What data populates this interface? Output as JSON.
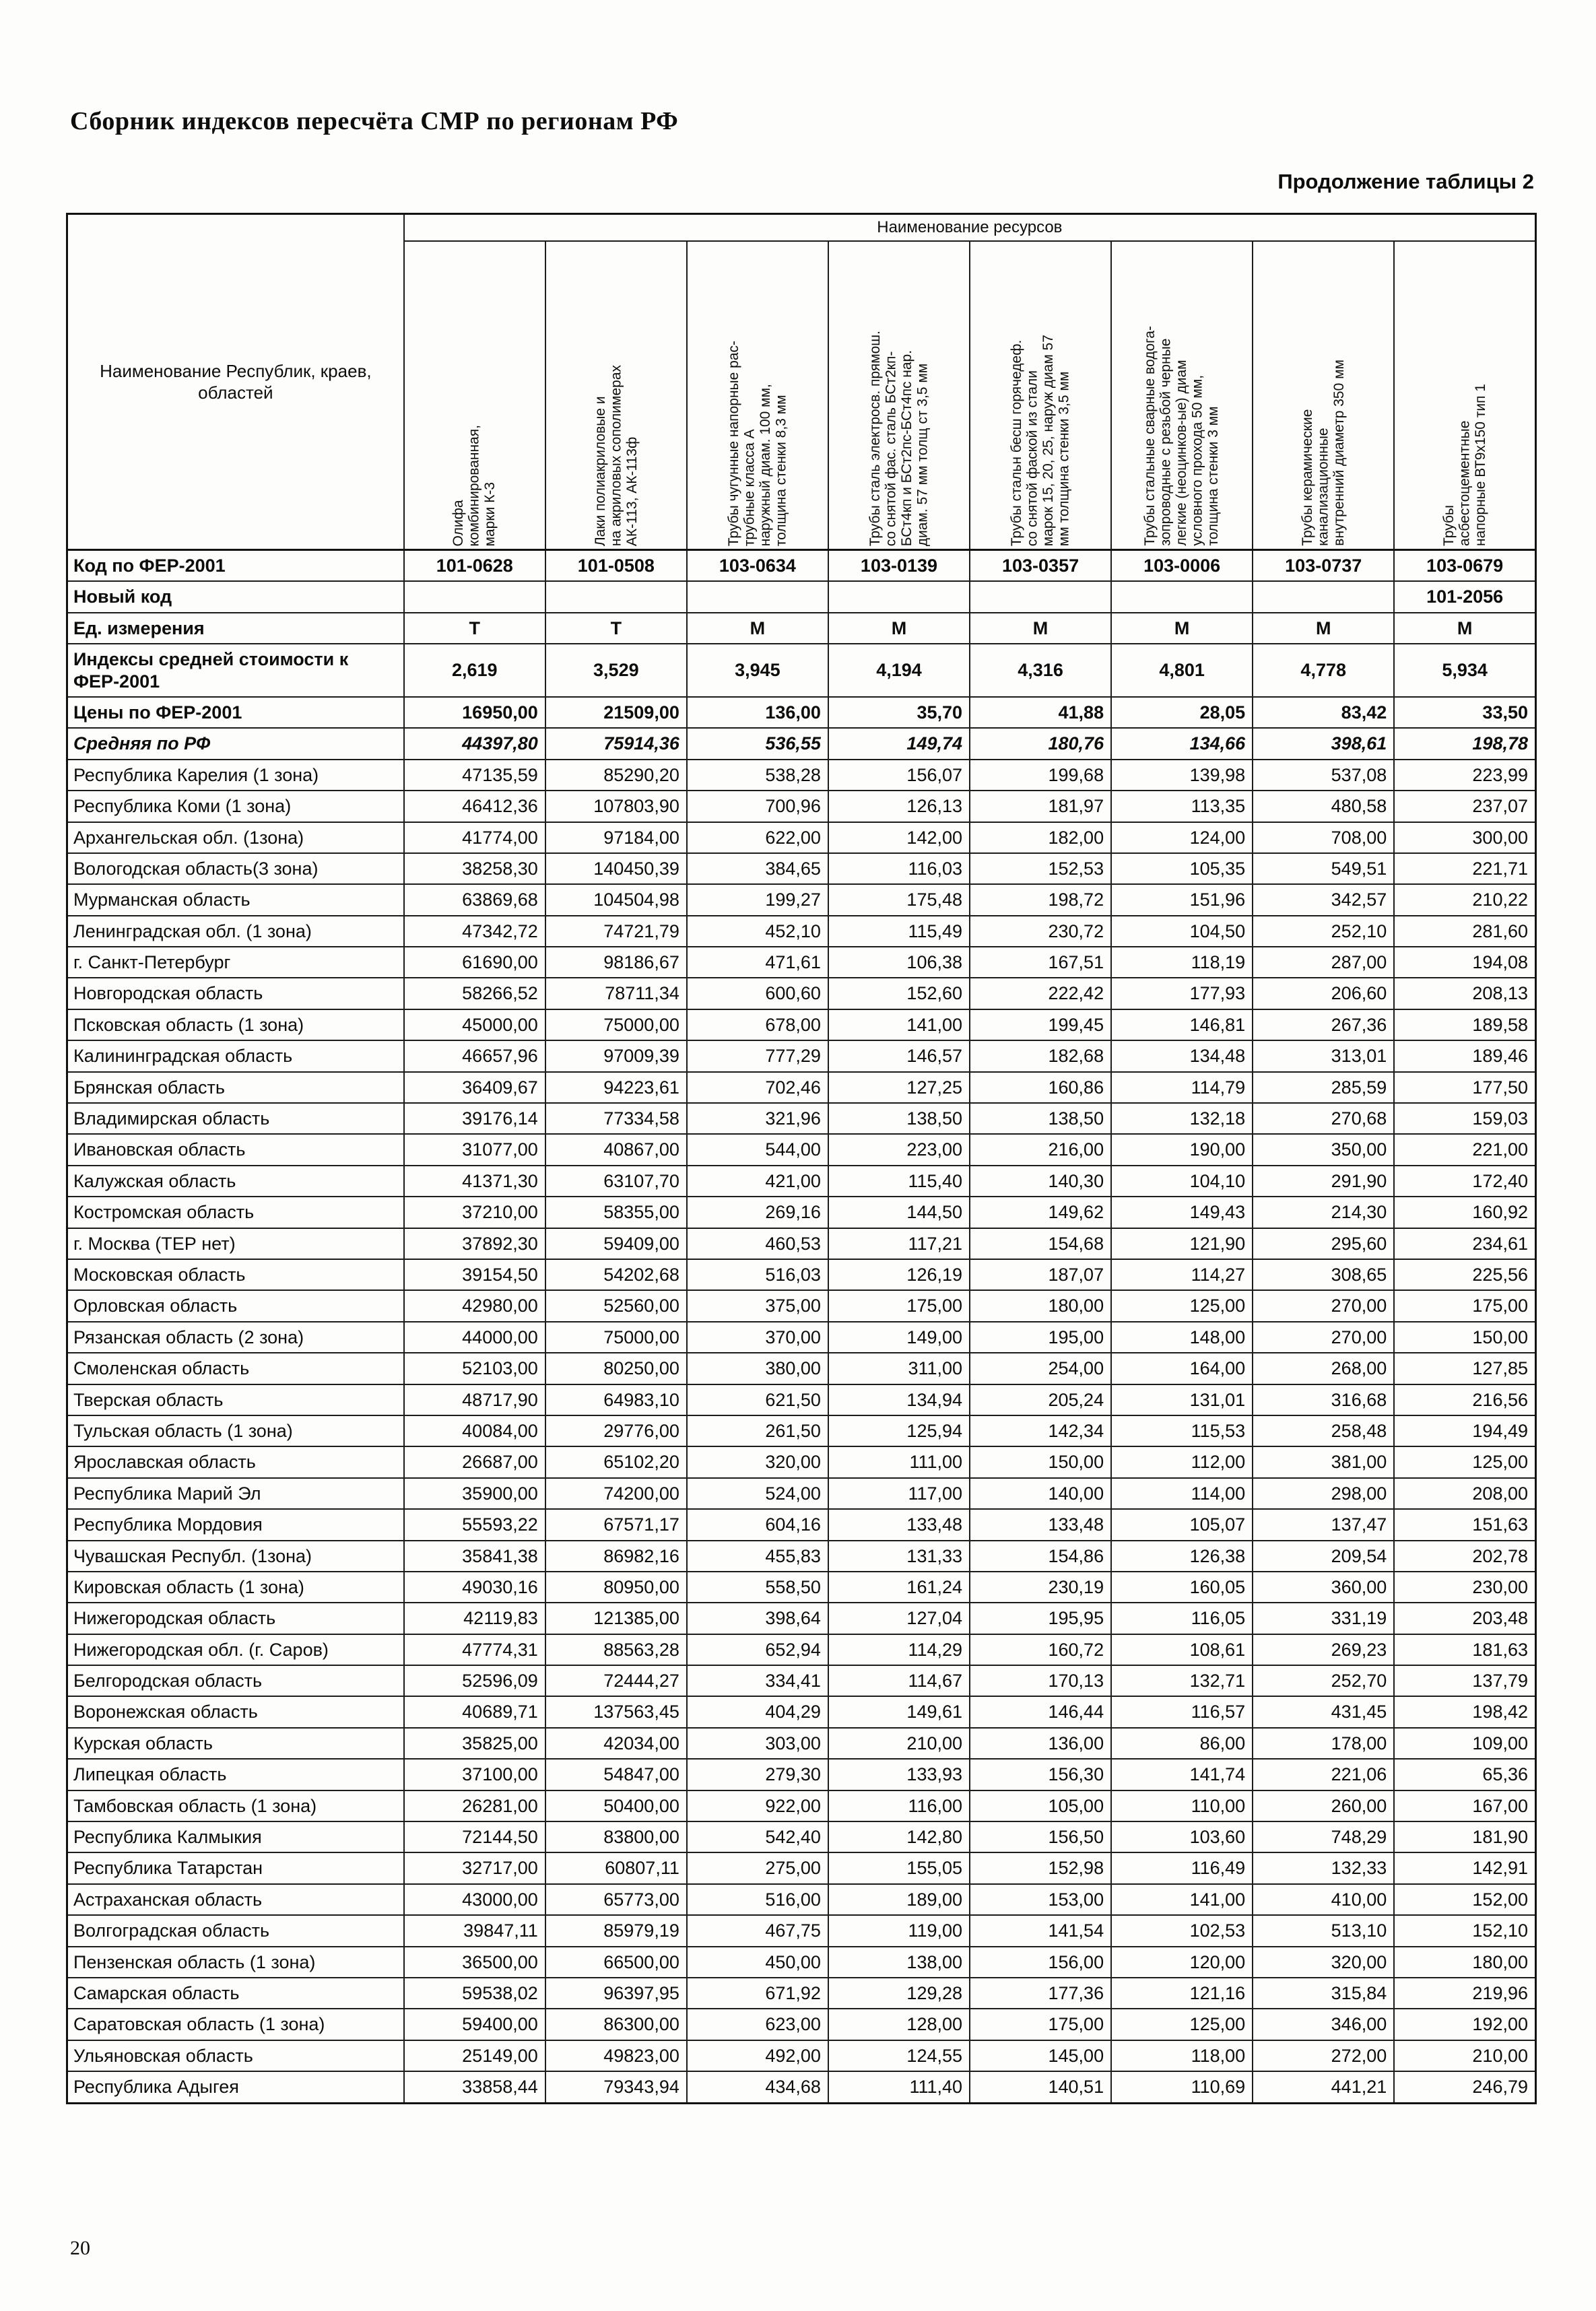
{
  "page": {
    "header_title": "Сборник индексов пересчёта СМР  по регионам РФ",
    "table_caption": "Продолжение таблицы 2",
    "page_number": "20"
  },
  "table": {
    "resources_header": "Наименование ресурсов",
    "region_col_header": "Наименование Республик, краев,\nобластей",
    "columns": [
      "Олифа\nкомбинированная,\nмарки К-3",
      "Лаки полиакриловые и\nна акриловых сополимерах\nАК-113, АК-113ф",
      "Трубы чугунные напорные рас-\nтрубные класса А\nнаружный диам. 100 мм,\nтолщина стенки 8,3 мм",
      "Трубы сталь электросв. прямош.\nсо снятой фас. сталь БСт2кп-\nБСт4кп и БСт2пс-БСт4пс нар.\nдиам. 57 мм толщ ст 3,5 мм",
      "Трубы стальн бесш горячедеф.\nсо снятой фаской  из стали\nмарок 15, 20, 25, наруж диам 57\nмм толщина стенки 3,5 мм",
      "Трубы стальные сварные водога-\nзопроводные с резьбой черные\nлегкие (неоцинков-ые) диам\nусловного прохода 50 мм,\nтолщина стенки 3 мм",
      "Трубы керамические\nканализационные\nвнутренний диаметр  350 мм",
      "Трубы\nасбестоцементные\nнапорные ВТ9х150 тип 1"
    ],
    "meta_rows": [
      {
        "label": "Код по ФЕР-2001",
        "align": "center",
        "cls": "b",
        "values": [
          "101-0628",
          "101-0508",
          "103-0634",
          "103-0139",
          "103-0357",
          "103-0006",
          "103-0737",
          "103-0679"
        ]
      },
      {
        "label": "Новый код",
        "align": "center",
        "cls": "b",
        "values": [
          "",
          "",
          "",
          "",
          "",
          "",
          "",
          "101-2056"
        ]
      },
      {
        "label": "Ед. измерения",
        "align": "center",
        "cls": "b",
        "values": [
          "Т",
          "Т",
          "М",
          "М",
          "М",
          "М",
          "М",
          "М"
        ]
      },
      {
        "label": "Индексы средней стоимости к ФЕР-2001",
        "align": "center",
        "cls": "b",
        "values": [
          "2,619",
          "3,529",
          "3,945",
          "4,194",
          "4,316",
          "4,801",
          "4,778",
          "5,934"
        ]
      },
      {
        "label": "Цены по ФЕР-2001",
        "align": "right",
        "cls": "b",
        "values": [
          "16950,00",
          "21509,00",
          "136,00",
          "35,70",
          "41,88",
          "28,05",
          "83,42",
          "33,50"
        ]
      },
      {
        "label": "Средняя по РФ",
        "align": "right",
        "cls": "bi",
        "values": [
          "44397,80",
          "75914,36",
          "536,55",
          "149,74",
          "180,76",
          "134,66",
          "398,61",
          "198,78"
        ]
      }
    ],
    "rows": [
      {
        "region": "Республика Карелия (1 зона)",
        "values": [
          "47135,59",
          "85290,20",
          "538,28",
          "156,07",
          "199,68",
          "139,98",
          "537,08",
          "223,99"
        ]
      },
      {
        "region": "Республика Коми (1 зона)",
        "values": [
          "46412,36",
          "107803,90",
          "700,96",
          "126,13",
          "181,97",
          "113,35",
          "480,58",
          "237,07"
        ]
      },
      {
        "region": "Архангельская обл. (1зона)",
        "values": [
          "41774,00",
          "97184,00",
          "622,00",
          "142,00",
          "182,00",
          "124,00",
          "708,00",
          "300,00"
        ]
      },
      {
        "region": "Вологодская область(3 зона)",
        "values": [
          "38258,30",
          "140450,39",
          "384,65",
          "116,03",
          "152,53",
          "105,35",
          "549,51",
          "221,71"
        ]
      },
      {
        "region": "Мурманская область",
        "values": [
          "63869,68",
          "104504,98",
          "199,27",
          "175,48",
          "198,72",
          "151,96",
          "342,57",
          "210,22"
        ]
      },
      {
        "region": "Ленинградская обл. (1 зона)",
        "values": [
          "47342,72",
          "74721,79",
          "452,10",
          "115,49",
          "230,72",
          "104,50",
          "252,10",
          "281,60"
        ]
      },
      {
        "region": "г. Санкт-Петербург",
        "values": [
          "61690,00",
          "98186,67",
          "471,61",
          "106,38",
          "167,51",
          "118,19",
          "287,00",
          "194,08"
        ]
      },
      {
        "region": "Новгородская область",
        "values": [
          "58266,52",
          "78711,34",
          "600,60",
          "152,60",
          "222,42",
          "177,93",
          "206,60",
          "208,13"
        ]
      },
      {
        "region": "Псковская область (1 зона)",
        "values": [
          "45000,00",
          "75000,00",
          "678,00",
          "141,00",
          "199,45",
          "146,81",
          "267,36",
          "189,58"
        ]
      },
      {
        "region": "Калининградская область",
        "values": [
          "46657,96",
          "97009,39",
          "777,29",
          "146,57",
          "182,68",
          "134,48",
          "313,01",
          "189,46"
        ]
      },
      {
        "region": "Брянская область",
        "values": [
          "36409,67",
          "94223,61",
          "702,46",
          "127,25",
          "160,86",
          "114,79",
          "285,59",
          "177,50"
        ]
      },
      {
        "region": "Владимирская область",
        "values": [
          "39176,14",
          "77334,58",
          "321,96",
          "138,50",
          "138,50",
          "132,18",
          "270,68",
          "159,03"
        ]
      },
      {
        "region": "Ивановская область",
        "values": [
          "31077,00",
          "40867,00",
          "544,00",
          "223,00",
          "216,00",
          "190,00",
          "350,00",
          "221,00"
        ]
      },
      {
        "region": "Калужская область",
        "values": [
          "41371,30",
          "63107,70",
          "421,00",
          "115,40",
          "140,30",
          "104,10",
          "291,90",
          "172,40"
        ]
      },
      {
        "region": "Костромская область",
        "values": [
          "37210,00",
          "58355,00",
          "269,16",
          "144,50",
          "149,62",
          "149,43",
          "214,30",
          "160,92"
        ]
      },
      {
        "region": "г. Москва (ТЕР нет)",
        "values": [
          "37892,30",
          "59409,00",
          "460,53",
          "117,21",
          "154,68",
          "121,90",
          "295,60",
          "234,61"
        ]
      },
      {
        "region": "Московская  область",
        "values": [
          "39154,50",
          "54202,68",
          "516,03",
          "126,19",
          "187,07",
          "114,27",
          "308,65",
          "225,56"
        ]
      },
      {
        "region": "Орловская область",
        "values": [
          "42980,00",
          "52560,00",
          "375,00",
          "175,00",
          "180,00",
          "125,00",
          "270,00",
          "175,00"
        ]
      },
      {
        "region": "Рязанская область (2 зона)",
        "values": [
          "44000,00",
          "75000,00",
          "370,00",
          "149,00",
          "195,00",
          "148,00",
          "270,00",
          "150,00"
        ]
      },
      {
        "region": "Смоленская область",
        "values": [
          "52103,00",
          "80250,00",
          "380,00",
          "311,00",
          "254,00",
          "164,00",
          "268,00",
          "127,85"
        ]
      },
      {
        "region": "Тверская область",
        "values": [
          "48717,90",
          "64983,10",
          "621,50",
          "134,94",
          "205,24",
          "131,01",
          "316,68",
          "216,56"
        ]
      },
      {
        "region": "Тульская область (1 зона)",
        "values": [
          "40084,00",
          "29776,00",
          "261,50",
          "125,94",
          "142,34",
          "115,53",
          "258,48",
          "194,49"
        ]
      },
      {
        "region": "Ярославская область",
        "values": [
          "26687,00",
          "65102,20",
          "320,00",
          "111,00",
          "150,00",
          "112,00",
          "381,00",
          "125,00"
        ]
      },
      {
        "region": "Республика Марий Эл",
        "values": [
          "35900,00",
          "74200,00",
          "524,00",
          "117,00",
          "140,00",
          "114,00",
          "298,00",
          "208,00"
        ]
      },
      {
        "region": "Республика Мордовия",
        "values": [
          "55593,22",
          "67571,17",
          "604,16",
          "133,48",
          "133,48",
          "105,07",
          "137,47",
          "151,63"
        ]
      },
      {
        "region": "Чувашская Республ. (1зона)",
        "values": [
          "35841,38",
          "86982,16",
          "455,83",
          "131,33",
          "154,86",
          "126,38",
          "209,54",
          "202,78"
        ]
      },
      {
        "region": "Кировская область (1 зона)",
        "values": [
          "49030,16",
          "80950,00",
          "558,50",
          "161,24",
          "230,19",
          "160,05",
          "360,00",
          "230,00"
        ]
      },
      {
        "region": "Нижегородская область",
        "values": [
          "42119,83",
          "121385,00",
          "398,64",
          "127,04",
          "195,95",
          "116,05",
          "331,19",
          "203,48"
        ]
      },
      {
        "region": "Нижегородская обл. (г. Саров)",
        "values": [
          "47774,31",
          "88563,28",
          "652,94",
          "114,29",
          "160,72",
          "108,61",
          "269,23",
          "181,63"
        ]
      },
      {
        "region": "Белгородская область",
        "values": [
          "52596,09",
          "72444,27",
          "334,41",
          "114,67",
          "170,13",
          "132,71",
          "252,70",
          "137,79"
        ]
      },
      {
        "region": "Воронежская область",
        "values": [
          "40689,71",
          "137563,45",
          "404,29",
          "149,61",
          "146,44",
          "116,57",
          "431,45",
          "198,42"
        ]
      },
      {
        "region": "Курская область",
        "values": [
          "35825,00",
          "42034,00",
          "303,00",
          "210,00",
          "136,00",
          "86,00",
          "178,00",
          "109,00"
        ]
      },
      {
        "region": "Липецкая область",
        "values": [
          "37100,00",
          "54847,00",
          "279,30",
          "133,93",
          "156,30",
          "141,74",
          "221,06",
          "65,36"
        ]
      },
      {
        "region": "Тамбовская область (1 зона)",
        "values": [
          "26281,00",
          "50400,00",
          "922,00",
          "116,00",
          "105,00",
          "110,00",
          "260,00",
          "167,00"
        ]
      },
      {
        "region": "Республика Калмыкия",
        "values": [
          "72144,50",
          "83800,00",
          "542,40",
          "142,80",
          "156,50",
          "103,60",
          "748,29",
          "181,90"
        ]
      },
      {
        "region": "Республика Татарстан",
        "values": [
          "32717,00",
          "60807,11",
          "275,00",
          "155,05",
          "152,98",
          "116,49",
          "132,33",
          "142,91"
        ]
      },
      {
        "region": "Астраханская область",
        "values": [
          "43000,00",
          "65773,00",
          "516,00",
          "189,00",
          "153,00",
          "141,00",
          "410,00",
          "152,00"
        ]
      },
      {
        "region": "Волгоградская область",
        "values": [
          "39847,11",
          "85979,19",
          "467,75",
          "119,00",
          "141,54",
          "102,53",
          "513,10",
          "152,10"
        ]
      },
      {
        "region": "Пензенская область (1 зона)",
        "values": [
          "36500,00",
          "66500,00",
          "450,00",
          "138,00",
          "156,00",
          "120,00",
          "320,00",
          "180,00"
        ]
      },
      {
        "region": "Самарская область",
        "values": [
          "59538,02",
          "96397,95",
          "671,92",
          "129,28",
          "177,36",
          "121,16",
          "315,84",
          "219,96"
        ]
      },
      {
        "region": "Саратовская область (1 зона)",
        "values": [
          "59400,00",
          "86300,00",
          "623,00",
          "128,00",
          "175,00",
          "125,00",
          "346,00",
          "192,00"
        ]
      },
      {
        "region": "Ульяновская область",
        "values": [
          "25149,00",
          "49823,00",
          "492,00",
          "124,55",
          "145,00",
          "118,00",
          "272,00",
          "210,00"
        ]
      },
      {
        "region": "Республика Адыгея",
        "values": [
          "33858,44",
          "79343,94",
          "434,68",
          "111,40",
          "140,51",
          "110,69",
          "441,21",
          "246,79"
        ]
      }
    ]
  }
}
